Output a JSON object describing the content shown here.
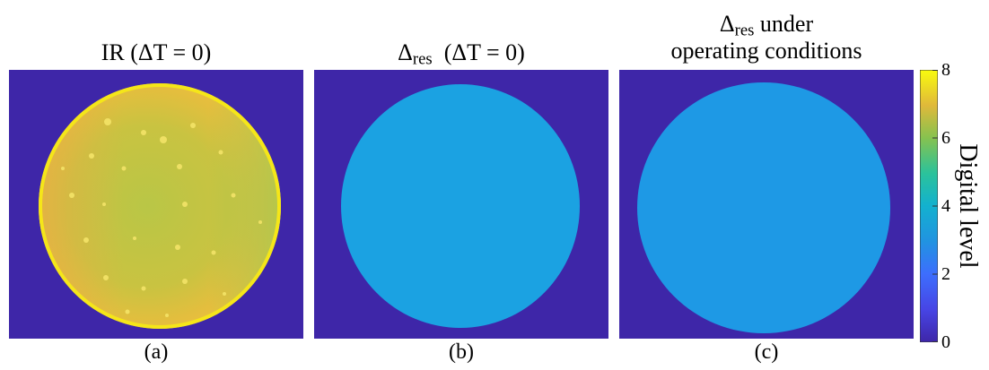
{
  "panels": [
    {
      "title_main": "IR  (ΔT = 0)",
      "label": "(a)"
    },
    {
      "title_symbol": "Δ",
      "title_sub": "res",
      "title_rest": "  (ΔT = 0)",
      "label": "(b)"
    },
    {
      "title_symbol": "Δ",
      "title_sub": "res",
      "title_rest": " under",
      "title_line2": "operating conditions",
      "label": "(c)"
    }
  ],
  "colorbar": {
    "label": "Digital level",
    "range": [
      0,
      8
    ],
    "ticks": [
      "0",
      "2",
      "4",
      "6",
      "8"
    ],
    "colormap": "parula"
  },
  "colors": {
    "background": "#3E26A8",
    "disc_fill": "#1BA2E2",
    "disc_fill_c": "#1E99E5",
    "ir_yellow": "#E9C33A",
    "ir_green": "#9CCB4F",
    "ir_rim": "#F5E619"
  },
  "chart_data": {
    "type": "heatmap",
    "panels": [
      {
        "label": "(a)",
        "title": "IR  (ΔT = 0)",
        "content": "circular sample, values ~5–8 digital level (yellow/green)"
      },
      {
        "label": "(b)",
        "title": "Δres  (ΔT = 0)",
        "content": "circular sample, uniform ~3 digital level"
      },
      {
        "label": "(c)",
        "title": "Δres under operating conditions",
        "content": "circular sample, uniform ~3 digital level"
      }
    ],
    "colorbar_label": "Digital level",
    "clim": [
      0,
      8
    ],
    "ticks": [
      0,
      2,
      4,
      6,
      8
    ]
  }
}
